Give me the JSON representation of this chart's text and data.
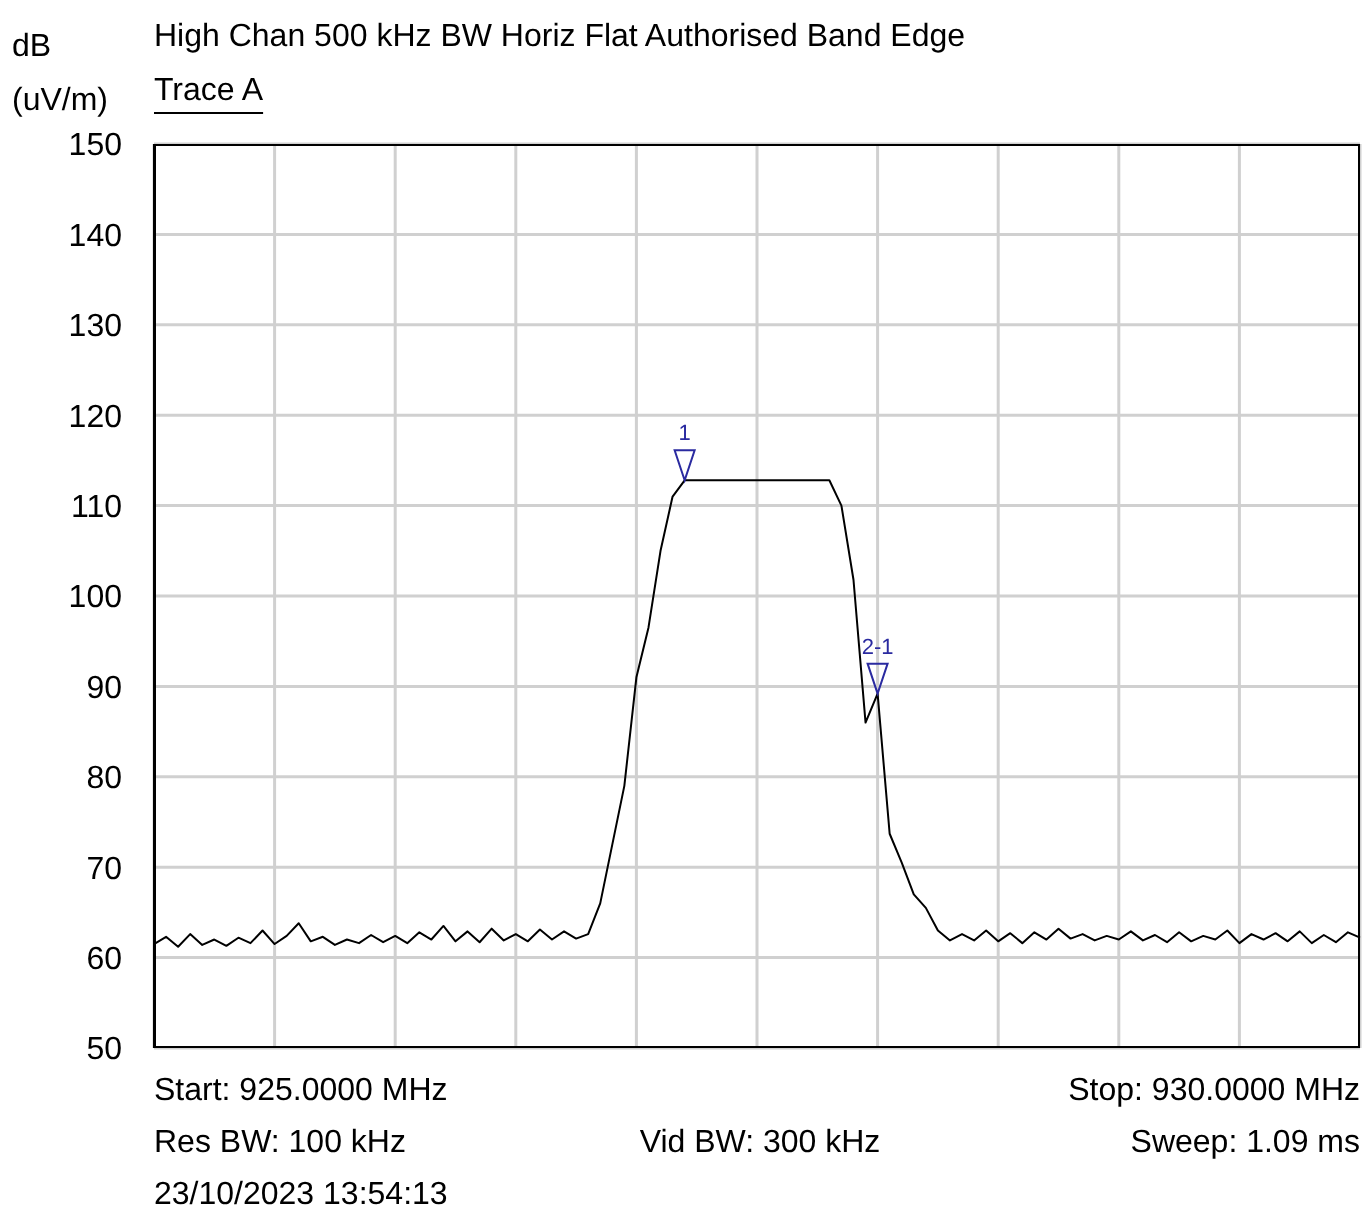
{
  "chart_data": {
    "type": "line",
    "title": "High Chan 500 kHz BW Horiz Flat Authorised Band Edge",
    "subtitle": "Trace A",
    "ylabel": "dB (uV/m)",
    "categories": [
      null,
      null,
      null,
      null,
      null,
      null,
      null,
      null,
      null,
      null,
      null,
      null,
      null,
      null,
      null,
      null,
      null,
      null,
      null,
      null,
      null,
      null,
      null,
      null,
      null,
      null,
      null,
      null,
      null,
      null,
      null,
      null,
      null,
      null,
      null,
      null,
      null,
      null,
      null,
      null,
      null,
      null,
      null,
      null,
      null,
      null,
      null,
      null,
      null,
      null,
      null,
      null,
      null,
      null,
      null,
      null,
      null,
      null,
      null,
      null,
      null,
      null,
      null,
      null,
      null,
      null,
      null,
      null,
      null,
      null,
      null,
      null,
      null,
      null,
      null,
      null,
      null,
      null,
      null,
      null,
      null,
      null,
      null,
      null,
      null,
      null,
      null,
      null,
      null,
      null,
      null,
      null,
      null,
      null,
      null,
      null,
      null,
      null,
      null,
      null,
      null
    ],
    "series": [
      {
        "color": "#000000",
        "values": [
          61.5,
          62.3,
          61.2,
          62.6,
          61.4,
          62.0,
          61.3,
          62.2,
          61.6,
          63.0,
          61.5,
          62.4,
          63.8,
          61.8,
          62.3,
          61.4,
          62.0,
          61.6,
          62.5,
          61.7,
          62.4,
          61.6,
          62.8,
          62.0,
          63.5,
          61.8,
          62.9,
          61.7,
          63.2,
          61.9,
          62.6,
          61.8,
          63.1,
          62.0,
          62.9,
          62.1,
          62.6,
          66.0,
          72.5,
          79.0,
          91.0,
          96.5,
          105.0,
          111.0,
          112.8,
          112.8,
          112.8,
          112.8,
          112.8,
          112.8,
          112.8,
          112.8,
          112.8,
          112.8,
          112.8,
          112.8,
          112.8,
          110.0,
          101.8,
          86.0,
          89.2,
          73.7,
          70.5,
          67.0,
          65.5,
          63.0,
          61.9,
          62.6,
          61.9,
          63.0,
          61.8,
          62.7,
          61.6,
          62.8,
          62.0,
          63.2,
          62.1,
          62.6,
          61.9,
          62.4,
          62.0,
          62.9,
          61.9,
          62.5,
          61.7,
          62.8,
          61.8,
          62.4,
          62.0,
          63.0,
          61.6,
          62.6,
          62.0,
          62.7,
          61.8,
          62.9,
          61.6,
          62.5,
          61.7,
          62.8,
          62.2
        ]
      }
    ],
    "ylim": [
      50,
      150
    ],
    "yticks": [
      50,
      60,
      70,
      80,
      90,
      100,
      110,
      120,
      130,
      140,
      150
    ],
    "grid": true,
    "legend": false,
    "annotations": [
      {
        "text": "1",
        "y": 112.8
      },
      {
        "text": "2-1",
        "y": 89.2
      },
      "Start: 925.0000 MHz",
      "Stop: 930.0000 MHz",
      "Res BW: 100 kHz",
      "Vid BW: 300 kHz",
      "Sweep: 1.09 ms",
      "23/10/2023 13:54:13"
    ]
  }
}
